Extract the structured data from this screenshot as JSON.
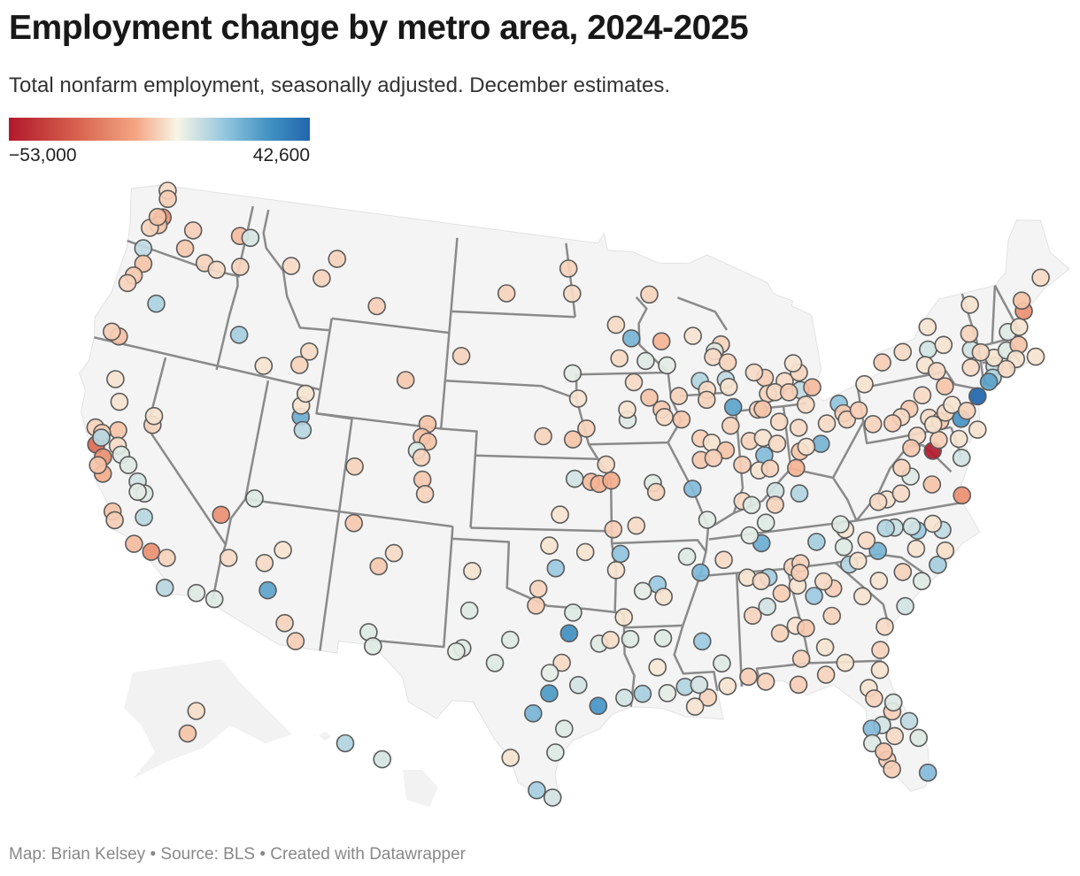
{
  "header": {
    "title": "Employment change by metro area, 2024-2025",
    "subtitle": "Total nonfarm employment, seasonally adjusted. December estimates."
  },
  "legend": {
    "min_label": "−53,000",
    "max_label": "42,600",
    "min_value": -53000,
    "max_value": 42600,
    "colors": [
      "#b2182b",
      "#d6604d",
      "#f4a582",
      "#f7f5e6",
      "#92c5de",
      "#4393c3",
      "#2166ac"
    ]
  },
  "footer": "Map: Brian Kelsey • Source: BLS • Created with Datawrapper",
  "metros": [
    [
      -122.33,
      47.61,
      -12000
    ],
    [
      -122.44,
      47.25,
      -3000
    ],
    [
      -122.9,
      47.04,
      -1500
    ],
    [
      -122.48,
      48.75,
      -1000
    ],
    [
      -122.33,
      48.42,
      -2000
    ],
    [
      -122.63,
      47.57,
      -3000
    ],
    [
      -120.31,
      47.42,
      -2000
    ],
    [
      -120.5,
      46.6,
      -2500
    ],
    [
      -117.43,
      47.66,
      -4000
    ],
    [
      -119.14,
      46.21,
      -1500
    ],
    [
      -118.34,
      46.06,
      -1000
    ],
    [
      -117.0,
      46.4,
      -1500
    ],
    [
      -116.78,
      47.68,
      800
    ],
    [
      -122.94,
      46.14,
      2000
    ],
    [
      -122.68,
      45.52,
      -3000
    ],
    [
      -123.03,
      44.94,
      -2500
    ],
    [
      -123.26,
      44.56,
      -1500
    ],
    [
      -121.31,
      44.06,
      3500
    ],
    [
      -122.87,
      42.33,
      -3500
    ],
    [
      -123.33,
      42.44,
      -2000
    ],
    [
      -122.39,
      40.59,
      -500
    ],
    [
      -121.84,
      39.73,
      -500
    ],
    [
      -121.49,
      38.58,
      -3000
    ],
    [
      -122.71,
      38.44,
      -1500
    ],
    [
      -122.42,
      37.77,
      -22000
    ],
    [
      -121.89,
      37.34,
      -12000
    ],
    [
      -122.29,
      38.3,
      -2000
    ],
    [
      -122.26,
      38.1,
      2500
    ],
    [
      -121.29,
      37.96,
      -1000
    ],
    [
      -121.0,
      37.64,
      500
    ],
    [
      -120.48,
      37.3,
      500
    ],
    [
      -121.66,
      36.68,
      -6000
    ],
    [
      -122.03,
      36.97,
      -3000
    ],
    [
      -119.79,
      36.74,
      1000
    ],
    [
      -119.29,
      36.33,
      500
    ],
    [
      -119.65,
      36.33,
      300
    ],
    [
      -119.02,
      35.37,
      2500
    ],
    [
      -120.66,
      35.28,
      -3000
    ],
    [
      -120.44,
      34.95,
      -2000
    ],
    [
      -119.18,
      34.2,
      -4000
    ],
    [
      -118.24,
      34.05,
      -12000
    ],
    [
      -117.4,
      33.95,
      -1500
    ],
    [
      -117.16,
      32.72,
      2500
    ],
    [
      -115.56,
      32.79,
      500
    ],
    [
      -115.14,
      36.17,
      -12000
    ],
    [
      -119.77,
      39.16,
      -1500
    ],
    [
      -119.81,
      39.53,
      -500
    ],
    [
      -111.89,
      40.76,
      12000
    ],
    [
      -111.97,
      41.22,
      -500
    ],
    [
      -111.66,
      40.23,
      2500
    ],
    [
      -111.83,
      41.74,
      -500
    ],
    [
      -113.58,
      37.1,
      500
    ],
    [
      -116.2,
      43.62,
      4000
    ],
    [
      -112.03,
      43.49,
      -1000
    ],
    [
      -112.45,
      42.87,
      -1500
    ],
    [
      -114.46,
      42.56,
      -500
    ],
    [
      -113.99,
      46.87,
      -1000
    ],
    [
      -111.3,
      47.5,
      -1500
    ],
    [
      -112.03,
      46.59,
      -1500
    ],
    [
      -108.5,
      45.78,
      -2000
    ],
    [
      -106.31,
      42.87,
      -2500
    ],
    [
      -104.82,
      41.14,
      -3000
    ],
    [
      -105.08,
      40.59,
      -3000
    ],
    [
      -104.71,
      40.42,
      -3000
    ],
    [
      -105.27,
      40.01,
      500
    ],
    [
      -104.99,
      39.74,
      -1500
    ],
    [
      -104.82,
      38.83,
      -2500
    ],
    [
      -104.61,
      38.25,
      -1500
    ],
    [
      -108.55,
      39.06,
      -1500
    ],
    [
      -112.07,
      33.45,
      15000
    ],
    [
      -110.97,
      32.22,
      -1500
    ],
    [
      -112.47,
      34.54,
      -1000
    ],
    [
      -111.65,
      35.2,
      -500
    ],
    [
      -114.32,
      34.48,
      -1000
    ],
    [
      -114.62,
      32.69,
      500
    ],
    [
      -110.3,
      31.55,
      -2000
    ],
    [
      -106.65,
      35.08,
      -2500
    ],
    [
      -105.94,
      35.69,
      -1000
    ],
    [
      -108.2,
      36.73,
      -2500
    ],
    [
      -106.78,
      32.32,
      500
    ],
    [
      -106.49,
      31.76,
      500
    ],
    [
      -149.9,
      61.22,
      -3000
    ],
    [
      -147.72,
      64.84,
      -800
    ],
    [
      -157.86,
      21.31,
      3000
    ],
    [
      -156.47,
      20.89,
      800
    ],
    [
      -100.78,
      46.81,
      -1500
    ],
    [
      -96.79,
      46.88,
      -1000
    ],
    [
      -97.03,
      47.93,
      -1500
    ],
    [
      -96.73,
      43.55,
      300
    ],
    [
      -103.23,
      44.08,
      -1500
    ],
    [
      -96.4,
      42.5,
      -500
    ],
    [
      -95.93,
      41.26,
      -1500
    ],
    [
      -96.68,
      40.81,
      -3000
    ],
    [
      -98.34,
      40.92,
      -1500
    ],
    [
      -96.57,
      39.18,
      1000
    ],
    [
      -95.68,
      39.05,
      -4000
    ],
    [
      -95.24,
      38.97,
      -5000
    ],
    [
      -94.58,
      39.1,
      -6000
    ],
    [
      -97.34,
      37.69,
      -500
    ],
    [
      -94.85,
      39.77,
      -1000
    ],
    [
      -95.99,
      36.15,
      -500
    ],
    [
      -97.52,
      35.47,
      5000
    ],
    [
      -98.39,
      34.6,
      -1500
    ],
    [
      -97.88,
      36.4,
      -500
    ],
    [
      -101.83,
      35.22,
      -500
    ],
    [
      -101.85,
      33.58,
      500
    ],
    [
      -102.08,
      32.0,
      500
    ],
    [
      -102.37,
      31.85,
      300
    ],
    [
      -100.44,
      31.46,
      500
    ],
    [
      -99.73,
      32.45,
      500
    ],
    [
      -98.49,
      33.91,
      -2000
    ],
    [
      -96.61,
      33.64,
      500
    ],
    [
      -96.8,
      32.78,
      22000
    ],
    [
      -97.15,
      31.55,
      -1000
    ],
    [
      -97.73,
      31.12,
      300
    ],
    [
      -95.3,
      32.35,
      500
    ],
    [
      -94.74,
      32.5,
      -800
    ],
    [
      -94.05,
      33.43,
      -500
    ],
    [
      -97.74,
      30.27,
      18000
    ],
    [
      -98.49,
      29.42,
      10000
    ],
    [
      -95.37,
      29.76,
      20000
    ],
    [
      -96.33,
      30.63,
      1000
    ],
    [
      -94.1,
      30.08,
      1000
    ],
    [
      -97.0,
      28.8,
      500
    ],
    [
      -97.4,
      27.8,
      500
    ],
    [
      -99.5,
      27.53,
      -500
    ],
    [
      -98.23,
      26.2,
      4000
    ],
    [
      -97.5,
      25.9,
      1000
    ],
    [
      -93.75,
      32.52,
      500
    ],
    [
      -92.12,
      32.51,
      500
    ],
    [
      -92.45,
      31.31,
      -300
    ],
    [
      -92.02,
      30.22,
      300
    ],
    [
      -93.22,
      30.23,
      4000
    ],
    [
      -91.15,
      30.45,
      3000
    ],
    [
      -90.07,
      29.95,
      -1500
    ],
    [
      -90.72,
      29.6,
      -500
    ],
    [
      -90.46,
      30.5,
      1000
    ],
    [
      -89.09,
      30.37,
      -500
    ],
    [
      -90.18,
      32.3,
      5000
    ],
    [
      -89.29,
      31.33,
      500
    ],
    [
      -92.29,
      34.75,
      5000
    ],
    [
      -94.4,
      35.39,
      -500
    ],
    [
      -94.16,
      36.06,
      6000
    ],
    [
      -90.7,
      35.84,
      500
    ],
    [
      -93.05,
      34.5,
      300
    ],
    [
      -92.0,
      34.23,
      -500
    ],
    [
      -90.05,
      35.15,
      9000
    ],
    [
      -93.29,
      37.21,
      -1000
    ],
    [
      -94.51,
      37.08,
      -2000
    ],
    [
      -92.33,
      38.95,
      500
    ],
    [
      -92.17,
      38.58,
      -1500
    ],
    [
      -90.2,
      38.63,
      8000
    ],
    [
      -89.52,
      37.31,
      300
    ],
    [
      -93.27,
      44.98,
      10000
    ],
    [
      -94.16,
      45.56,
      -1000
    ],
    [
      -92.47,
      44.02,
      500
    ],
    [
      -92.1,
      46.79,
      -1500
    ],
    [
      -94.0,
      44.16,
      -1000
    ],
    [
      -91.5,
      44.81,
      -5000
    ],
    [
      -91.24,
      43.8,
      300
    ],
    [
      -89.63,
      44.96,
      -500
    ],
    [
      -88.02,
      44.52,
      -1500
    ],
    [
      -88.41,
      44.26,
      500
    ],
    [
      -88.54,
      44.02,
      -1000
    ],
    [
      -87.71,
      43.75,
      -1500
    ],
    [
      -89.4,
      43.07,
      3000
    ],
    [
      -87.91,
      43.04,
      2000
    ],
    [
      -87.78,
      42.73,
      -500
    ],
    [
      -89.02,
      42.68,
      -1000
    ],
    [
      -89.09,
      42.27,
      -1500
    ],
    [
      -87.63,
      41.88,
      15000
    ],
    [
      -87.86,
      41.12,
      -1500
    ],
    [
      -89.59,
      40.69,
      -2000
    ],
    [
      -88.99,
      40.48,
      -500
    ],
    [
      -88.24,
      40.12,
      -3000
    ],
    [
      -89.65,
      39.8,
      -2500
    ],
    [
      -88.95,
      39.84,
      -2000
    ],
    [
      -90.58,
      41.52,
      -2500
    ],
    [
      -91.67,
      41.98,
      -2500
    ],
    [
      -91.53,
      41.66,
      -1000
    ],
    [
      -92.34,
      42.49,
      -3000
    ],
    [
      -90.66,
      42.5,
      -1500
    ],
    [
      -93.61,
      41.6,
      500
    ],
    [
      -93.62,
      42.03,
      -500
    ],
    [
      -93.2,
      43.15,
      -1000
    ],
    [
      -83.74,
      42.28,
      2000
    ],
    [
      -83.05,
      42.33,
      -4000
    ],
    [
      -85.67,
      42.96,
      -2000
    ],
    [
      -84.56,
      42.73,
      -1000
    ],
    [
      -83.69,
      43.01,
      -1500
    ],
    [
      -83.95,
      43.42,
      -500
    ],
    [
      -85.59,
      42.29,
      -1500
    ],
    [
      -85.18,
      42.32,
      -1000
    ],
    [
      -84.4,
      42.25,
      -2000
    ],
    [
      -86.25,
      43.23,
      -1000
    ],
    [
      -86.25,
      41.68,
      -1500
    ],
    [
      -85.98,
      41.68,
      -3000
    ],
    [
      -85.14,
      41.08,
      -1000
    ],
    [
      -86.16,
      39.77,
      8000
    ],
    [
      -86.88,
      40.42,
      -1500
    ],
    [
      -86.13,
      40.49,
      -500
    ],
    [
      -85.39,
      40.19,
      -1000
    ],
    [
      -86.53,
      39.17,
      -500
    ],
    [
      -85.92,
      39.2,
      -1500
    ],
    [
      -87.41,
      39.47,
      -2000
    ],
    [
      -87.57,
      37.97,
      -1000
    ],
    [
      -83.54,
      41.65,
      -1000
    ],
    [
      -81.69,
      41.5,
      6000
    ],
    [
      -81.52,
      41.08,
      -2000
    ],
    [
      -81.38,
      40.8,
      -1500
    ],
    [
      -80.65,
      41.1,
      -2000
    ],
    [
      -83.0,
      39.96,
      10000
    ],
    [
      -84.19,
      39.76,
      -3000
    ],
    [
      -84.51,
      39.1,
      -5000
    ],
    [
      -83.81,
      39.92,
      -500
    ],
    [
      -82.52,
      40.76,
      -1000
    ],
    [
      -84.1,
      40.74,
      -1000
    ],
    [
      -85.76,
      38.25,
      1000
    ],
    [
      -84.5,
      38.04,
      3000
    ],
    [
      -86.44,
      36.99,
      500
    ],
    [
      -85.86,
      37.69,
      -1500
    ],
    [
      -87.11,
      37.77,
      500
    ],
    [
      -86.78,
      36.16,
      12000
    ],
    [
      -87.36,
      36.53,
      300
    ],
    [
      -83.92,
      35.96,
      4000
    ],
    [
      -85.31,
      35.05,
      -1500
    ],
    [
      -88.81,
      35.61,
      -1000
    ],
    [
      -82.35,
      36.31,
      -500
    ],
    [
      -82.56,
      36.55,
      500
    ],
    [
      -84.88,
      35.16,
      -1500
    ],
    [
      -86.59,
      34.73,
      4000
    ],
    [
      -86.8,
      33.52,
      1000
    ],
    [
      -86.3,
      32.37,
      -1500
    ],
    [
      -88.04,
      30.69,
      -2000
    ],
    [
      -87.57,
      33.21,
      -1500
    ],
    [
      -85.48,
      32.61,
      -500
    ],
    [
      -85.39,
      31.22,
      -1500
    ],
    [
      -87.68,
      34.8,
      -500
    ],
    [
      -86.01,
      34.01,
      -2000
    ],
    [
      -86.98,
      34.6,
      -1000
    ],
    [
      -84.39,
      33.75,
      5000
    ],
    [
      -84.99,
      32.46,
      -2500
    ],
    [
      -83.63,
      32.84,
      -1500
    ],
    [
      -83.38,
      33.96,
      -2000
    ],
    [
      -81.97,
      33.47,
      -500
    ],
    [
      -81.1,
      32.08,
      -1000
    ],
    [
      -84.16,
      31.58,
      -500
    ],
    [
      -83.28,
      30.83,
      -500
    ],
    [
      -81.49,
      31.15,
      -1500
    ],
    [
      -83.82,
      34.3,
      -1000
    ],
    [
      -85.16,
      34.26,
      -500
    ],
    [
      -84.97,
      34.77,
      -2000
    ],
    [
      -84.28,
      30.44,
      -1500
    ],
    [
      -87.22,
      30.42,
      -1500
    ],
    [
      -85.66,
      30.16,
      -2000
    ],
    [
      -81.66,
      30.33,
      -500
    ],
    [
      -82.32,
      29.65,
      -500
    ],
    [
      -82.14,
      29.19,
      -1500
    ],
    [
      -81.38,
      28.54,
      -2000
    ],
    [
      -81.26,
      28.9,
      500
    ],
    [
      -80.66,
      28.03,
      2000
    ],
    [
      -81.95,
      28.04,
      1000
    ],
    [
      -82.46,
      27.95,
      8000
    ],
    [
      -82.53,
      27.34,
      500
    ],
    [
      -80.35,
      27.27,
      500
    ],
    [
      -81.95,
      26.56,
      -2000
    ],
    [
      -81.8,
      26.14,
      -2000
    ],
    [
      -80.19,
      25.76,
      8000
    ],
    [
      -82.05,
      26.93,
      -2500
    ],
    [
      -81.44,
      27.5,
      -1000
    ],
    [
      -79.93,
      32.78,
      1000
    ],
    [
      -81.03,
      34.0,
      -500
    ],
    [
      -82.4,
      34.85,
      3000
    ],
    [
      -81.93,
      34.95,
      -500
    ],
    [
      -78.89,
      33.69,
      500
    ],
    [
      -79.76,
      34.2,
      -1500
    ],
    [
      -80.84,
      35.23,
      10000
    ],
    [
      -78.64,
      35.78,
      5000
    ],
    [
      -78.9,
      35.99,
      1000
    ],
    [
      -79.79,
      36.07,
      1500
    ],
    [
      -80.24,
      36.1,
      3000
    ],
    [
      -78.88,
      35.05,
      -500
    ],
    [
      -77.94,
      34.23,
      4000
    ],
    [
      -82.55,
      35.6,
      500
    ],
    [
      -81.34,
      35.73,
      -1000
    ],
    [
      -77.37,
      35.61,
      2000
    ],
    [
      -77.43,
      34.75,
      -800
    ],
    [
      -77.79,
      35.94,
      -500
    ],
    [
      -76.0,
      36.85,
      -12000
    ],
    [
      -77.44,
      37.54,
      -3000
    ],
    [
      -79.94,
      37.27,
      -500
    ],
    [
      -78.48,
      38.03,
      500
    ],
    [
      -79.14,
      37.41,
      -1000
    ],
    [
      -78.87,
      38.45,
      -1500
    ],
    [
      -80.41,
      37.23,
      -1000
    ],
    [
      -77.04,
      38.9,
      -53000
    ],
    [
      -76.61,
      39.29,
      -2000
    ],
    [
      -77.72,
      39.64,
      -1000
    ],
    [
      -78.16,
      39.18,
      -2500
    ],
    [
      -75.6,
      38.37,
      1000
    ],
    [
      -75.52,
      39.16,
      -500
    ],
    [
      -75.16,
      39.95,
      20000
    ],
    [
      -79.99,
      40.44,
      -1500
    ],
    [
      -76.88,
      40.27,
      -1000
    ],
    [
      -76.31,
      40.04,
      -2500
    ],
    [
      -76.73,
      39.96,
      -500
    ],
    [
      -75.93,
      40.34,
      -1000
    ],
    [
      -75.49,
      40.6,
      -500
    ],
    [
      -75.66,
      41.41,
      -3000
    ],
    [
      -77.86,
      40.79,
      -2500
    ],
    [
      -78.39,
      40.52,
      -1000
    ],
    [
      -78.92,
      40.33,
      -2000
    ],
    [
      -80.09,
      42.13,
      -500
    ],
    [
      -77.0,
      41.24,
      -1000
    ],
    [
      -74.0,
      40.71,
      42600
    ],
    [
      -74.76,
      40.22,
      -1500
    ],
    [
      -74.42,
      39.36,
      -500
    ],
    [
      -78.88,
      42.89,
      -2000
    ],
    [
      -77.61,
      43.16,
      -1000
    ],
    [
      -76.15,
      43.05,
      1000
    ],
    [
      -73.76,
      42.65,
      1000
    ],
    [
      -76.5,
      42.44,
      -500
    ],
    [
      -75.92,
      42.1,
      -1000
    ],
    [
      -75.23,
      43.1,
      -500
    ],
    [
      -75.91,
      43.97,
      -500
    ],
    [
      -73.64,
      43.31,
      -1500
    ],
    [
      -74.0,
      41.93,
      -1000
    ],
    [
      -72.68,
      41.76,
      1500
    ],
    [
      -72.93,
      41.31,
      3000
    ],
    [
      -73.2,
      41.18,
      15000
    ],
    [
      -72.59,
      42.1,
      -500
    ],
    [
      -71.8,
      42.26,
      500
    ],
    [
      -71.06,
      42.36,
      -3000
    ],
    [
      -71.41,
      41.82,
      -500
    ],
    [
      -72.07,
      41.52,
      -1000
    ],
    [
      -73.21,
      44.48,
      -500
    ],
    [
      -71.46,
      42.99,
      500
    ],
    [
      -70.76,
      43.07,
      -500
    ],
    [
      -70.26,
      43.66,
      -12000
    ],
    [
      -70.21,
      44.1,
      -3000
    ],
    [
      -68.77,
      44.8,
      -1000
    ],
    [
      -70.3,
      41.7,
      -500
    ],
    [
      -73.25,
      42.45,
      -1000
    ]
  ]
}
